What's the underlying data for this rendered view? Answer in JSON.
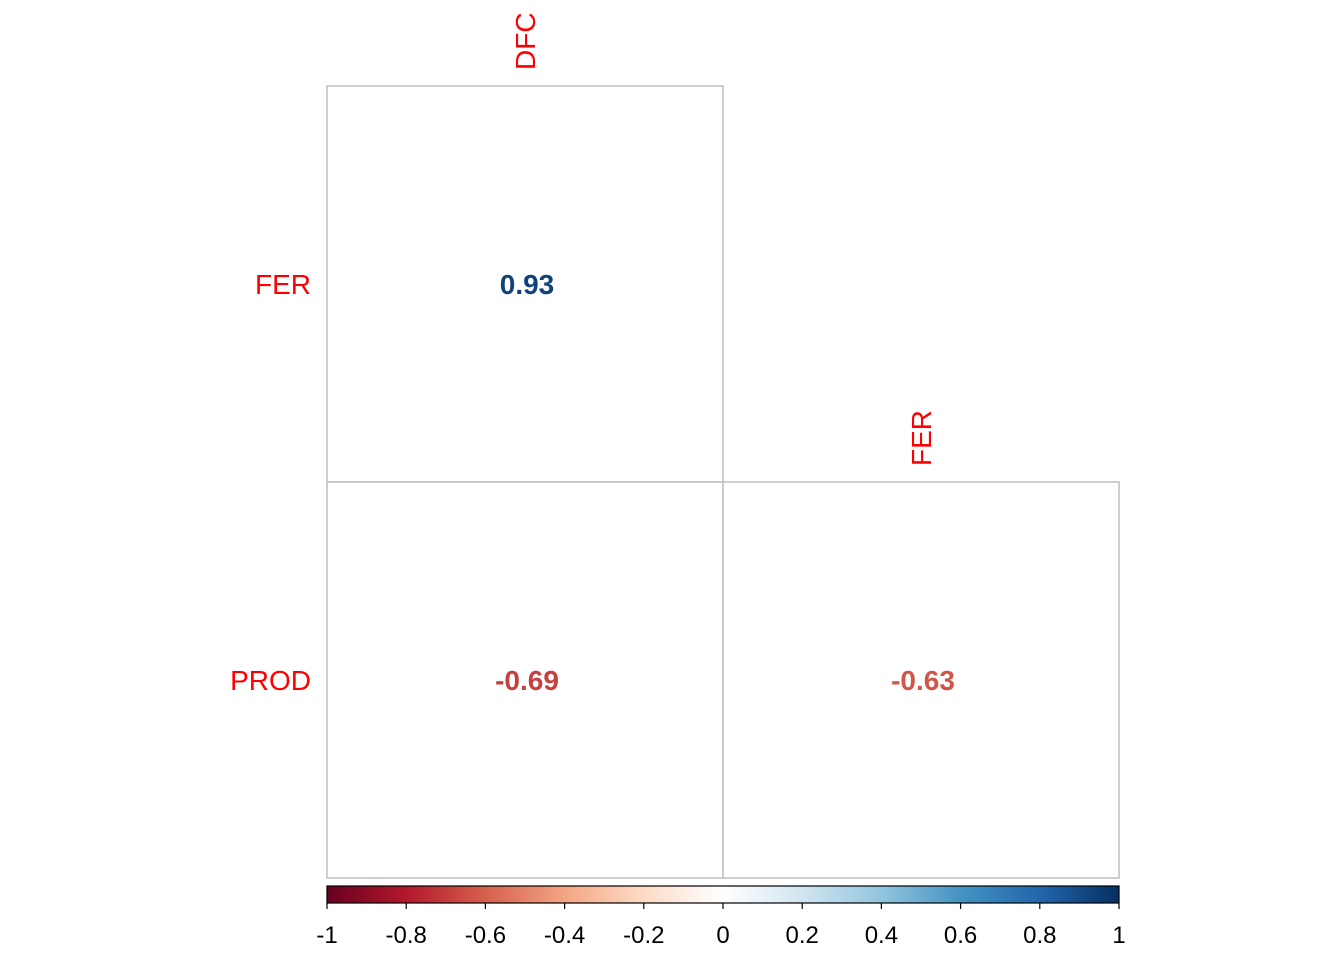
{
  "chart_data": {
    "type": "heatmap",
    "subtype": "correlation-matrix-lower",
    "row_labels": [
      "FER",
      "PROD"
    ],
    "col_labels": [
      "DFC",
      "FER"
    ],
    "cells": [
      {
        "row": "FER",
        "col": "DFC",
        "value": 0.93,
        "label": "0.93"
      },
      {
        "row": "PROD",
        "col": "DFC",
        "value": -0.69,
        "label": "-0.69"
      },
      {
        "row": "PROD",
        "col": "FER",
        "value": -0.63,
        "label": "-0.63"
      }
    ],
    "colorbar": {
      "range": [
        -1,
        1
      ],
      "ticks": [
        -1,
        -0.8,
        -0.6,
        -0.4,
        -0.2,
        0,
        0.2,
        0.4,
        0.6,
        0.8,
        1
      ],
      "tick_labels": [
        "-1",
        "-0.8",
        "-0.6",
        "-0.4",
        "-0.2",
        "0",
        "0.2",
        "0.4",
        "0.6",
        "0.8",
        "1"
      ],
      "colors": [
        "#67001F",
        "#B2182B",
        "#D6604D",
        "#F4A582",
        "#FDDBC7",
        "#FFFFFF",
        "#D1E5F0",
        "#92C5DE",
        "#4393C3",
        "#2166AC",
        "#053061"
      ]
    },
    "label_color": "#FF0000",
    "grid_color": "#BEBEBE",
    "legend_position": "bottom"
  }
}
